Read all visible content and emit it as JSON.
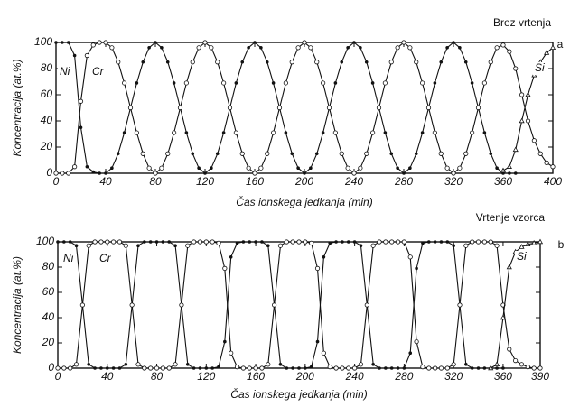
{
  "chart_data": [
    {
      "type": "line",
      "title": "Brez vrtenja",
      "panel": "a",
      "xlabel": "Čas ionskega jedkanja (min)",
      "ylabel": "Koncentracija (at.%)",
      "xlim": [
        0,
        400
      ],
      "ylim": [
        0,
        100
      ],
      "xticks": [
        0,
        40,
        80,
        120,
        160,
        200,
        240,
        280,
        320,
        360,
        400
      ],
      "yticks": [
        0,
        20,
        40,
        60,
        80,
        100
      ],
      "x": [
        0,
        5,
        10,
        15,
        20,
        25,
        30,
        35,
        40,
        45,
        50,
        55,
        60,
        65,
        70,
        75,
        80,
        85,
        90,
        95,
        100,
        105,
        110,
        115,
        120,
        125,
        130,
        135,
        140,
        145,
        150,
        155,
        160,
        165,
        170,
        175,
        180,
        185,
        190,
        195,
        200,
        205,
        210,
        215,
        220,
        225,
        230,
        235,
        240,
        245,
        250,
        255,
        260,
        265,
        270,
        275,
        280,
        285,
        290,
        295,
        300,
        305,
        310,
        315,
        320,
        325,
        330,
        335,
        340,
        345,
        350,
        355,
        360,
        365,
        370,
        375,
        380,
        385,
        390,
        395,
        400
      ],
      "series": [
        {
          "name": "Ni",
          "color": "#111111",
          "marker": "dot",
          "values": [
            100,
            100,
            100,
            90,
            35,
            5,
            1,
            0,
            0,
            4,
            15,
            31,
            50,
            69,
            85,
            96,
            100,
            96,
            85,
            69,
            50,
            31,
            15,
            4,
            0,
            4,
            15,
            31,
            50,
            69,
            85,
            96,
            100,
            96,
            85,
            69,
            50,
            31,
            15,
            4,
            0,
            4,
            15,
            31,
            50,
            69,
            85,
            96,
            100,
            96,
            85,
            69,
            50,
            31,
            15,
            4,
            0,
            4,
            15,
            31,
            50,
            69,
            85,
            96,
            100,
            96,
            85,
            69,
            50,
            31,
            15,
            4,
            0,
            0,
            0,
            null,
            null,
            null,
            null,
            null,
            null
          ]
        },
        {
          "name": "Cr",
          "color": "#111111",
          "marker": "circle",
          "values": [
            0,
            0,
            0,
            5,
            55,
            90,
            98,
            100,
            100,
            96,
            85,
            69,
            50,
            31,
            15,
            4,
            0,
            4,
            15,
            31,
            50,
            69,
            85,
            96,
            100,
            96,
            85,
            69,
            50,
            31,
            15,
            4,
            0,
            4,
            15,
            31,
            50,
            69,
            85,
            96,
            100,
            96,
            85,
            69,
            50,
            31,
            15,
            4,
            0,
            4,
            15,
            31,
            50,
            69,
            85,
            96,
            100,
            96,
            85,
            69,
            50,
            31,
            15,
            4,
            0,
            4,
            15,
            31,
            50,
            69,
            85,
            96,
            98,
            93,
            80,
            60,
            40,
            25,
            15,
            8,
            5
          ]
        },
        {
          "name": "Si",
          "color": "#111111",
          "marker": "triangle",
          "values": [
            null,
            null,
            null,
            null,
            null,
            null,
            null,
            null,
            null,
            null,
            null,
            null,
            null,
            null,
            null,
            null,
            null,
            null,
            null,
            null,
            null,
            null,
            null,
            null,
            null,
            null,
            null,
            null,
            null,
            null,
            null,
            null,
            null,
            null,
            null,
            null,
            null,
            null,
            null,
            null,
            null,
            null,
            null,
            null,
            null,
            null,
            null,
            null,
            null,
            null,
            null,
            null,
            null,
            null,
            null,
            null,
            null,
            null,
            null,
            null,
            null,
            null,
            null,
            null,
            null,
            null,
            null,
            null,
            null,
            null,
            null,
            null,
            2,
            5,
            18,
            40,
            60,
            75,
            85,
            92,
            96
          ]
        }
      ]
    },
    {
      "type": "line",
      "title": "Vrtenje vzorca",
      "panel": "b",
      "xlabel": "Čas ionskega jedkanja (min)",
      "ylabel": "Koncentracija (at.%)",
      "xlim": [
        0,
        390
      ],
      "ylim": [
        0,
        100
      ],
      "xticks": [
        0,
        40,
        80,
        120,
        160,
        200,
        240,
        280,
        320,
        360,
        390
      ],
      "yticks": [
        0,
        20,
        40,
        60,
        80,
        100
      ],
      "x": [
        0,
        5,
        10,
        15,
        20,
        25,
        30,
        35,
        40,
        45,
        50,
        55,
        60,
        65,
        70,
        75,
        80,
        85,
        90,
        95,
        100,
        105,
        110,
        115,
        120,
        125,
        130,
        135,
        140,
        145,
        150,
        155,
        160,
        165,
        170,
        175,
        180,
        185,
        190,
        195,
        200,
        205,
        210,
        215,
        220,
        225,
        230,
        235,
        240,
        245,
        250,
        255,
        260,
        265,
        270,
        275,
        280,
        285,
        290,
        295,
        300,
        305,
        310,
        315,
        320,
        325,
        330,
        335,
        340,
        345,
        350,
        355,
        360,
        365,
        370,
        375,
        380,
        385,
        390
      ],
      "series": [
        {
          "name": "Ni",
          "color": "#111111",
          "marker": "dot",
          "values": [
            100,
            100,
            100,
            97,
            50,
            3,
            0,
            0,
            0,
            0,
            0,
            3,
            50,
            97,
            100,
            100,
            100,
            100,
            100,
            97,
            50,
            3,
            0,
            0,
            0,
            0,
            1,
            21,
            88,
            99,
            100,
            100,
            100,
            100,
            97,
            50,
            3,
            0,
            0,
            0,
            0,
            1,
            21,
            88,
            99,
            100,
            100,
            100,
            100,
            97,
            50,
            3,
            0,
            0,
            0,
            0,
            0,
            12,
            79,
            99,
            100,
            100,
            100,
            100,
            97,
            50,
            3,
            0,
            0,
            0,
            0,
            0,
            0,
            null,
            null,
            null,
            null,
            null,
            null
          ]
        },
        {
          "name": "Cr",
          "color": "#111111",
          "marker": "circle",
          "values": [
            0,
            0,
            0,
            3,
            50,
            97,
            100,
            100,
            100,
            100,
            100,
            97,
            50,
            3,
            0,
            0,
            0,
            0,
            0,
            3,
            50,
            97,
            100,
            100,
            100,
            100,
            99,
            79,
            12,
            1,
            0,
            0,
            0,
            0,
            3,
            50,
            97,
            100,
            100,
            100,
            100,
            99,
            79,
            12,
            1,
            0,
            0,
            0,
            0,
            3,
            50,
            97,
            100,
            100,
            100,
            100,
            100,
            88,
            21,
            1,
            0,
            0,
            0,
            0,
            3,
            50,
            97,
            100,
            100,
            100,
            100,
            97,
            50,
            15,
            6,
            3,
            1,
            0,
            0
          ]
        },
        {
          "name": "Si",
          "color": "#111111",
          "marker": "triangle",
          "values": [
            null,
            null,
            null,
            null,
            null,
            null,
            null,
            null,
            null,
            null,
            null,
            null,
            null,
            null,
            null,
            null,
            null,
            null,
            null,
            null,
            null,
            null,
            null,
            null,
            null,
            null,
            null,
            null,
            null,
            null,
            null,
            null,
            null,
            null,
            null,
            null,
            null,
            null,
            null,
            null,
            null,
            null,
            null,
            null,
            null,
            null,
            null,
            null,
            null,
            null,
            null,
            null,
            null,
            null,
            null,
            null,
            null,
            null,
            null,
            null,
            null,
            null,
            null,
            null,
            null,
            null,
            null,
            null,
            null,
            null,
            0,
            3,
            40,
            80,
            92,
            96,
            98,
            99,
            100
          ]
        }
      ]
    }
  ]
}
